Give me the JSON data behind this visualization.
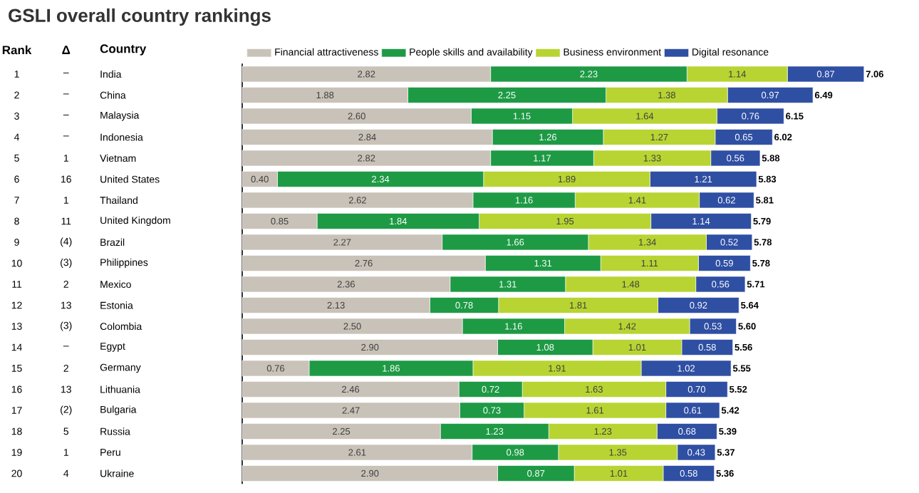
{
  "chart_data": {
    "type": "bar",
    "orientation": "horizontal",
    "stacked": true,
    "title": "GSLI overall country rankings",
    "ylabel": "Country",
    "legend": "top",
    "categories": [
      "India",
      "China",
      "Malaysia",
      "Indonesia",
      "Vietnam",
      "United States",
      "Thailand",
      "United Kingdom",
      "Brazil",
      "Philippines",
      "Mexico",
      "Estonia",
      "Colombia",
      "Egypt",
      "Germany",
      "Lithuania",
      "Bulgaria",
      "Russia",
      "Peru",
      "Ukraine"
    ],
    "series": [
      {
        "name": "Financial attractiveness",
        "color": "#c9c2b8",
        "values": [
          2.82,
          1.88,
          2.6,
          2.84,
          2.82,
          0.4,
          2.62,
          0.85,
          2.27,
          2.76,
          2.36,
          2.13,
          2.5,
          2.9,
          0.76,
          2.46,
          2.47,
          2.25,
          2.61,
          2.9
        ],
        "value_labels": [
          "2.82",
          "1.88",
          "2.60",
          "2.84",
          "2.82",
          "0.40",
          "2.62",
          "0.85",
          "2.27",
          "2.76",
          "2.36",
          "2.13",
          "2.50",
          "2.90",
          "0.76",
          "2.46",
          "2.47",
          "2.25",
          "2.61",
          "2.90"
        ]
      },
      {
        "name": "People skills and availability",
        "color": "#1e9a45",
        "values": [
          2.23,
          2.25,
          1.15,
          1.26,
          1.17,
          2.34,
          1.16,
          1.84,
          1.66,
          1.31,
          1.31,
          0.78,
          1.16,
          1.08,
          1.86,
          0.72,
          0.73,
          1.23,
          0.98,
          0.87
        ],
        "value_labels": [
          "2.23",
          "2.25",
          "1.15",
          "1.26",
          "1.17",
          "2.34",
          "1.16",
          "1.84",
          "1.66",
          "1.31",
          "1.31",
          "0.78",
          "1.16",
          "1.08",
          "1.86",
          "0.72",
          "0.73",
          "1.23",
          "0.98",
          "0.87"
        ]
      },
      {
        "name": "Business environment",
        "color": "#b8d432",
        "values": [
          1.14,
          1.38,
          1.64,
          1.27,
          1.33,
          1.89,
          1.41,
          1.95,
          1.34,
          1.11,
          1.48,
          1.81,
          1.42,
          1.01,
          1.91,
          1.63,
          1.61,
          1.23,
          1.35,
          1.01
        ],
        "value_labels": [
          "1.14",
          "1.38",
          "1.64",
          "1.27",
          "1.33",
          "1.89",
          "1.41",
          "1.95",
          "1.34",
          "1.11",
          "1.48",
          "1.81",
          "1.42",
          "1.01",
          "1.91",
          "1.63",
          "1.61",
          "1.23",
          "1.35",
          "1.01"
        ]
      },
      {
        "name": "Digital resonance",
        "color": "#2f4fa3",
        "values": [
          0.87,
          0.97,
          0.76,
          0.65,
          0.56,
          1.21,
          0.62,
          1.14,
          0.52,
          0.59,
          0.56,
          0.92,
          0.53,
          0.58,
          1.02,
          0.7,
          0.61,
          0.68,
          0.43,
          0.58
        ],
        "value_labels": [
          "0.87",
          "0.97",
          "0.76",
          "0.65",
          "0.56",
          "1.21",
          "0.62",
          "1.14",
          "0.52",
          "0.59",
          "0.56",
          "0.92",
          "0.53",
          "0.58",
          "1.02",
          "0.70",
          "0.61",
          "0.68",
          "0.43",
          "0.58"
        ]
      }
    ],
    "totals": [
      "7.06",
      "6.49",
      "6.15",
      "6.02",
      "5.88",
      "5.83",
      "5.81",
      "5.79",
      "5.78",
      "5.78",
      "5.71",
      "5.64",
      "5.60",
      "5.56",
      "5.55",
      "5.52",
      "5.42",
      "5.39",
      "5.37",
      "5.36"
    ],
    "annotations": [
      "Rank",
      "Δ",
      "1",
      "–",
      "2",
      "–",
      "3",
      "–",
      "4",
      "–",
      "5",
      "1",
      "6",
      "16",
      "7",
      "1",
      "8",
      "11",
      "9",
      "(4)",
      "10",
      "(3)",
      "11",
      "2",
      "12",
      "13",
      "13",
      "(3)",
      "14",
      "–",
      "15",
      "2",
      "16",
      "13",
      "17",
      "(2)",
      "18",
      "5",
      "19",
      "1",
      "20",
      "4"
    ]
  }
}
